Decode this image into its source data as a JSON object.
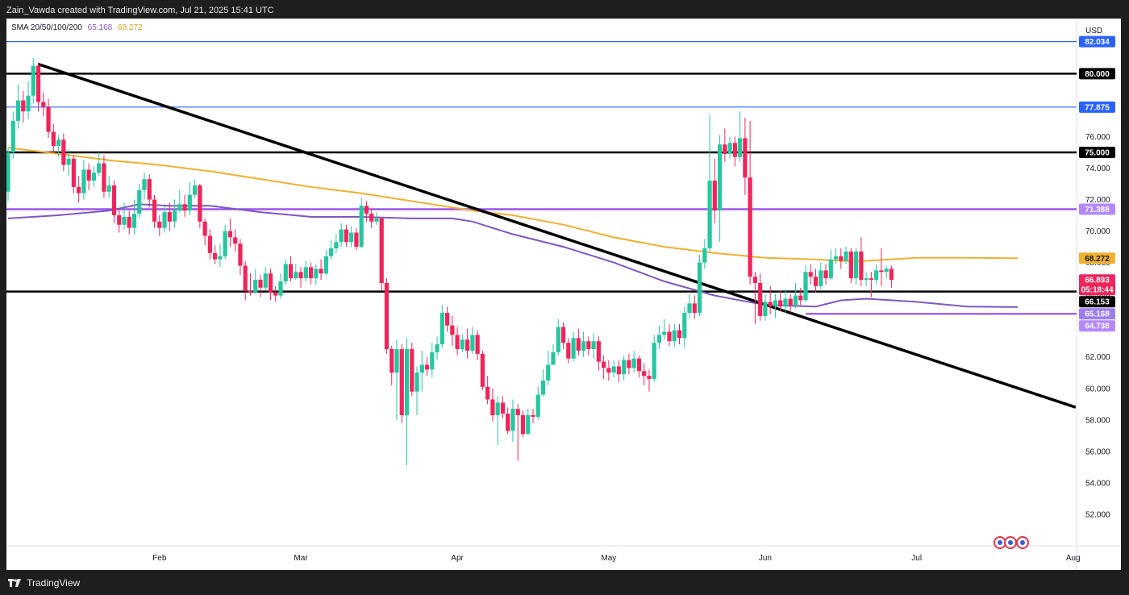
{
  "header": {
    "text": "Zain_Vawda created with TradingView.com, Jul 21, 2025 15:41 UTC"
  },
  "footer": {
    "brand": "TradingView",
    "logo_icon": "tradingview-logo-icon"
  },
  "legend": {
    "label": "SMA 20/50/100/200",
    "value_a": "65.168",
    "value_b": "68.272"
  },
  "currency": "USD",
  "colors": {
    "up": "#26c6a0",
    "down": "#f0245a",
    "sma_a": "#7e57c2",
    "sma_b": "#f0b030",
    "blue_line": "#2962ff",
    "black_line": "#000000",
    "purple_line": "#9c55e8"
  },
  "chart_data": {
    "type": "candlestick",
    "y_axis": {
      "range": [
        50.0,
        83.5
      ],
      "ticks": [
        "52.000",
        "54.000",
        "56.000",
        "58.000",
        "60.000",
        "62.000",
        "64.000",
        "66.000",
        "68.000",
        "70.000",
        "72.000",
        "74.000",
        "76.000"
      ]
    },
    "x_axis": {
      "ticks": [
        {
          "label": "Feb",
          "t": 30
        },
        {
          "label": "Mar",
          "t": 58
        },
        {
          "label": "Apr",
          "t": 89
        },
        {
          "label": "May",
          "t": 119
        },
        {
          "label": "Jun",
          "t": 150
        },
        {
          "label": "Jul",
          "t": 180
        },
        {
          "label": "Aug",
          "t": 211
        }
      ],
      "range": [
        0,
        212
      ]
    },
    "horizontal_levels": [
      {
        "value": 82.034,
        "label": "82.034",
        "style": "blue"
      },
      {
        "value": 80.0,
        "label": "80.000",
        "style": "black"
      },
      {
        "value": 77.875,
        "label": "77.875",
        "style": "blue"
      },
      {
        "value": 75.0,
        "label": "75.000",
        "style": "black"
      },
      {
        "value": 71.388,
        "label": "71.388",
        "style": "purple"
      },
      {
        "value": 66.153,
        "label": "66.153",
        "style": "black"
      },
      {
        "value": 64.738,
        "label": "64.738",
        "style": "purple-short",
        "from_t": 158
      }
    ],
    "trendline": {
      "from": {
        "t": 6,
        "y": 80.6
      },
      "to": {
        "t": 211.5,
        "y": 58.8
      }
    },
    "price_tags": [
      {
        "value": 68.272,
        "label": "68.272",
        "bg": "#f0b030",
        "fg": "#131722"
      },
      {
        "value": 66.893,
        "label": "66.893",
        "sublabel": "05:18:44",
        "bg": "#f0245a",
        "fg": "#ffffff"
      },
      {
        "value": 66.153,
        "label": "66.153",
        "bg": "#000000",
        "fg": "#ffffff"
      },
      {
        "value": 65.168,
        "label": "65.168",
        "bg": "#9c7ef0",
        "fg": "#ffffff"
      },
      {
        "value": 64.738,
        "label": "64.738",
        "bg": "#b388ff",
        "fg": "#ffffff"
      }
    ],
    "sma_a": [
      [
        0,
        70.8
      ],
      [
        10,
        71.0
      ],
      [
        20,
        71.3
      ],
      [
        26,
        71.7
      ],
      [
        32,
        71.6
      ],
      [
        40,
        71.6
      ],
      [
        50,
        71.2
      ],
      [
        60,
        70.9
      ],
      [
        70,
        70.9
      ],
      [
        80,
        70.8
      ],
      [
        88,
        70.8
      ],
      [
        92,
        70.6
      ],
      [
        100,
        69.8
      ],
      [
        110,
        69.0
      ],
      [
        120,
        68.0
      ],
      [
        130,
        66.8
      ],
      [
        140,
        65.9
      ],
      [
        150,
        65.3
      ],
      [
        160,
        65.2
      ],
      [
        165,
        65.6
      ],
      [
        170,
        65.7
      ],
      [
        180,
        65.5
      ],
      [
        190,
        65.2
      ],
      [
        200,
        65.168
      ]
    ],
    "sma_b": [
      [
        0,
        75.3
      ],
      [
        10,
        74.9
      ],
      [
        20,
        74.5
      ],
      [
        30,
        74.2
      ],
      [
        40,
        73.8
      ],
      [
        50,
        73.3
      ],
      [
        60,
        72.8
      ],
      [
        70,
        72.4
      ],
      [
        80,
        71.9
      ],
      [
        88,
        71.5
      ],
      [
        92,
        71.3
      ],
      [
        100,
        71.0
      ],
      [
        110,
        70.4
      ],
      [
        120,
        69.6
      ],
      [
        130,
        69.0
      ],
      [
        140,
        68.6
      ],
      [
        150,
        68.3
      ],
      [
        160,
        68.2
      ],
      [
        165,
        68.1
      ],
      [
        170,
        68.1
      ],
      [
        180,
        68.3
      ],
      [
        190,
        68.3
      ],
      [
        200,
        68.272
      ]
    ],
    "candles": [
      [
        0,
        72.5,
        75,
        75.3,
        71.9
      ],
      [
        1,
        75.0,
        77.0,
        77.6,
        74.6
      ],
      [
        2,
        77.0,
        78.3,
        79.3,
        76.5
      ],
      [
        3,
        78.3,
        77.6,
        78.9,
        76.9
      ],
      [
        4,
        77.6,
        78.6,
        79.5,
        77.1
      ],
      [
        5,
        78.6,
        80.5,
        81.0,
        78.1
      ],
      [
        6,
        80.5,
        78.2,
        80.7,
        77.6
      ],
      [
        7,
        78.2,
        77.9,
        78.8,
        77.3
      ],
      [
        8,
        77.9,
        76.3,
        78.4,
        75.9
      ],
      [
        9,
        76.3,
        75.4,
        76.8,
        75.0
      ],
      [
        10,
        75.4,
        75.8,
        76.1,
        74.7
      ],
      [
        11,
        75.8,
        74.2,
        76.2,
        73.8
      ],
      [
        12,
        74.2,
        74.6,
        75.2,
        73.5
      ],
      [
        13,
        74.6,
        72.8,
        74.8,
        72.4
      ],
      [
        14,
        72.8,
        72.4,
        73.5,
        71.8
      ],
      [
        15,
        72.4,
        73.9,
        74.5,
        72.0
      ],
      [
        16,
        73.9,
        73.2,
        74.3,
        72.6
      ],
      [
        17,
        73.2,
        73.7,
        74.1,
        72.8
      ],
      [
        18,
        73.7,
        74.3,
        75.0,
        73.5
      ],
      [
        19,
        74.3,
        72.5,
        74.8,
        72.1
      ],
      [
        20,
        72.5,
        72.9,
        73.5,
        72.1
      ],
      [
        21,
        72.9,
        71.0,
        73.2,
        70.5
      ],
      [
        22,
        71.0,
        70.4,
        71.4,
        69.9
      ],
      [
        23,
        70.4,
        70.9,
        71.8,
        70.1
      ],
      [
        24,
        70.9,
        70.2,
        71.3,
        69.8
      ],
      [
        25,
        70.2,
        71.1,
        72.0,
        69.8
      ],
      [
        26,
        71.1,
        72.6,
        73.0,
        70.8
      ],
      [
        27,
        72.6,
        73.3,
        73.7,
        72.0
      ],
      [
        28,
        73.3,
        72.0,
        73.6,
        71.5
      ],
      [
        29,
        72.0,
        70.6,
        72.3,
        70.2
      ],
      [
        30,
        70.6,
        70.2,
        71.0,
        69.7
      ],
      [
        31,
        70.2,
        71.2,
        71.6,
        69.9
      ],
      [
        32,
        71.2,
        70.6,
        71.8,
        70.0
      ],
      [
        33,
        70.6,
        71.3,
        72.0,
        70.2
      ],
      [
        34,
        71.3,
        71.7,
        72.6,
        71.2
      ],
      [
        35,
        71.7,
        71.3,
        72.3,
        70.9
      ],
      [
        36,
        71.3,
        72.3,
        73.1,
        71.0
      ],
      [
        37,
        72.3,
        72.9,
        73.3,
        72.1
      ],
      [
        38,
        72.9,
        70.6,
        73.0,
        70.2
      ],
      [
        39,
        70.6,
        69.7,
        70.8,
        69.1
      ],
      [
        40,
        69.7,
        68.6,
        70.1,
        68.2
      ],
      [
        41,
        68.6,
        68.2,
        69.1,
        67.9
      ],
      [
        42,
        68.2,
        68.4,
        69.2,
        67.7
      ],
      [
        43,
        68.4,
        70.0,
        70.4,
        68.2
      ],
      [
        44,
        70.0,
        69.6,
        70.8,
        69.0
      ],
      [
        45,
        69.6,
        69.2,
        70.1,
        68.7
      ],
      [
        46,
        69.2,
        67.8,
        69.5,
        67.2
      ],
      [
        47,
        67.8,
        66.2,
        68.1,
        65.6
      ],
      [
        48,
        66.2,
        66.1,
        67.3,
        65.9
      ],
      [
        49,
        66.1,
        66.9,
        67.6,
        66.0
      ],
      [
        50,
        66.9,
        66.4,
        67.2,
        65.8
      ],
      [
        51,
        66.4,
        67.3,
        67.7,
        66.2
      ],
      [
        52,
        67.3,
        66.1,
        67.6,
        65.6
      ],
      [
        53,
        66.1,
        65.9,
        66.5,
        65.5
      ],
      [
        54,
        65.9,
        66.8,
        67.3,
        65.7
      ],
      [
        55,
        66.8,
        67.9,
        68.2,
        66.6
      ],
      [
        56,
        67.9,
        67.0,
        68.4,
        66.8
      ],
      [
        57,
        67.0,
        67.4,
        67.9,
        66.9
      ],
      [
        58,
        67.4,
        67.0,
        67.7,
        66.4
      ],
      [
        59,
        67.0,
        67.7,
        68.1,
        66.8
      ],
      [
        60,
        67.7,
        67.0,
        68.0,
        66.6
      ],
      [
        61,
        67.0,
        67.6,
        67.9,
        66.6
      ],
      [
        62,
        67.6,
        67.3,
        68.2,
        66.9
      ],
      [
        63,
        67.3,
        68.4,
        68.8,
        67.2
      ],
      [
        64,
        68.4,
        68.9,
        69.4,
        68.2
      ],
      [
        65,
        68.9,
        69.3,
        69.8,
        68.6
      ],
      [
        66,
        69.3,
        70.1,
        70.5,
        69.0
      ],
      [
        67,
        70.1,
        69.3,
        70.4,
        69.0
      ],
      [
        68,
        69.3,
        69.9,
        70.3,
        69.0
      ],
      [
        69,
        69.9,
        69.0,
        70.2,
        68.8
      ],
      [
        70,
        69.0,
        71.6,
        72.1,
        68.9
      ],
      [
        71,
        71.6,
        71.1,
        71.9,
        70.6
      ],
      [
        72,
        71.1,
        70.6,
        71.4,
        70.2
      ],
      [
        73,
        70.6,
        70.8,
        71.2,
        70.4
      ],
      [
        74,
        70.8,
        66.7,
        70.9,
        66.2
      ],
      [
        75,
        66.7,
        62.5,
        67.0,
        62.2
      ],
      [
        76,
        62.5,
        61.0,
        62.7,
        60.2
      ],
      [
        77,
        61.0,
        62.5,
        63.1,
        58.0
      ],
      [
        78,
        62.5,
        58.3,
        62.8,
        57.8
      ],
      [
        79,
        58.3,
        62.5,
        63.2,
        55.1
      ],
      [
        80,
        62.5,
        59.8,
        62.9,
        59.5
      ],
      [
        81,
        59.8,
        61.0,
        61.4,
        58.3
      ],
      [
        82,
        61.0,
        61.5,
        62.4,
        59.8
      ],
      [
        83,
        61.5,
        61.2,
        62.0,
        60.8
      ],
      [
        84,
        61.2,
        62.3,
        62.9,
        60.7
      ],
      [
        85,
        62.3,
        62.8,
        63.3,
        61.8
      ],
      [
        86,
        62.8,
        64.8,
        65.3,
        62.6
      ],
      [
        87,
        64.8,
        64.0,
        65.2,
        63.6
      ],
      [
        88,
        64.0,
        63.4,
        64.6,
        62.7
      ],
      [
        89,
        63.4,
        62.5,
        63.9,
        62.1
      ],
      [
        90,
        62.5,
        63.1,
        63.4,
        62.3
      ],
      [
        91,
        63.1,
        62.4,
        63.8,
        61.9
      ],
      [
        92,
        62.4,
        63.4,
        63.9,
        62.2
      ],
      [
        93,
        63.4,
        62.2,
        63.7,
        61.8
      ],
      [
        94,
        62.2,
        60.1,
        62.4,
        59.9
      ],
      [
        95,
        60.1,
        59.3,
        60.8,
        59.0
      ],
      [
        96,
        59.3,
        58.3,
        60.0,
        57.9
      ],
      [
        97,
        58.3,
        59.1,
        59.5,
        56.4
      ],
      [
        98,
        59.1,
        58.4,
        59.5,
        58.1
      ],
      [
        99,
        58.4,
        57.3,
        58.8,
        57.1
      ],
      [
        100,
        57.3,
        58.7,
        59.3,
        56.6
      ],
      [
        101,
        58.7,
        58.3,
        59.0,
        55.4
      ],
      [
        102,
        58.3,
        57.1,
        58.6,
        56.9
      ],
      [
        103,
        57.1,
        58.3,
        58.7,
        57.2
      ],
      [
        104,
        58.3,
        58.2,
        58.7,
        57.8
      ],
      [
        105,
        58.2,
        59.6,
        60.1,
        58.0
      ],
      [
        106,
        59.6,
        60.5,
        61.2,
        59.5
      ],
      [
        107,
        60.5,
        61.5,
        62.4,
        60.2
      ],
      [
        108,
        61.5,
        62.3,
        62.8,
        61.5
      ],
      [
        109,
        62.3,
        63.9,
        64.4,
        62.1
      ],
      [
        110,
        63.9,
        62.9,
        64.2,
        62.5
      ],
      [
        111,
        62.9,
        61.9,
        63.2,
        61.6
      ],
      [
        112,
        61.9,
        63.2,
        63.6,
        61.7
      ],
      [
        113,
        63.2,
        62.4,
        63.8,
        62.1
      ],
      [
        114,
        62.4,
        63.0,
        63.6,
        62.0
      ],
      [
        115,
        63.0,
        62.5,
        63.3,
        62.1
      ],
      [
        116,
        62.5,
        63.0,
        63.5,
        61.9
      ],
      [
        117,
        63.0,
        61.7,
        63.3,
        61.1
      ],
      [
        118,
        61.7,
        61.3,
        62.1,
        60.6
      ],
      [
        119,
        61.3,
        61.0,
        61.8,
        60.5
      ],
      [
        120,
        61.0,
        61.4,
        61.8,
        60.7
      ],
      [
        121,
        61.4,
        60.9,
        61.8,
        60.4
      ],
      [
        122,
        60.9,
        61.8,
        62.1,
        60.5
      ],
      [
        123,
        61.8,
        61.3,
        62.2,
        60.9
      ],
      [
        124,
        61.3,
        61.9,
        62.4,
        61.0
      ],
      [
        125,
        61.9,
        61.1,
        62.1,
        60.7
      ],
      [
        126,
        61.1,
        60.8,
        61.6,
        60.2
      ],
      [
        127,
        60.8,
        60.6,
        61.2,
        59.8
      ],
      [
        128,
        60.6,
        62.9,
        63.4,
        60.4
      ],
      [
        129,
        62.9,
        63.4,
        64.0,
        62.5
      ],
      [
        130,
        63.4,
        63.6,
        64.4,
        63.1
      ],
      [
        131,
        63.6,
        63.0,
        64.1,
        62.7
      ],
      [
        132,
        63.0,
        63.7,
        64.1,
        62.6
      ],
      [
        133,
        63.7,
        63.2,
        64.1,
        62.8
      ],
      [
        134,
        63.2,
        64.8,
        65.2,
        62.6
      ],
      [
        135,
        64.8,
        65.4,
        66.0,
        64.5
      ],
      [
        136,
        65.4,
        64.8,
        65.9,
        64.4
      ],
      [
        137,
        64.8,
        68.0,
        68.5,
        64.6
      ],
      [
        138,
        68.0,
        68.9,
        69.5,
        67.6
      ],
      [
        139,
        68.9,
        73.2,
        77.4,
        68.7
      ],
      [
        140,
        73.2,
        71.3,
        74.6,
        70.5
      ],
      [
        141,
        71.3,
        75.5,
        76.1,
        69.3
      ],
      [
        142,
        75.5,
        74.9,
        76.5,
        74.4
      ],
      [
        143,
        74.9,
        75.6,
        76.0,
        74.6
      ],
      [
        144,
        75.6,
        74.7,
        76.0,
        74.1
      ],
      [
        145,
        74.7,
        75.9,
        77.6,
        74.4
      ],
      [
        146,
        75.9,
        73.4,
        77.2,
        72.3
      ],
      [
        147,
        73.4,
        67.1,
        77.0,
        66.6
      ],
      [
        148,
        67.1,
        66.7,
        67.4,
        64.1
      ],
      [
        149,
        66.7,
        64.6,
        67.3,
        64.3
      ],
      [
        150,
        64.6,
        65.5,
        66.0,
        64.3
      ],
      [
        151,
        65.5,
        65.2,
        66.5,
        64.7
      ],
      [
        152,
        65.2,
        65.6,
        66.0,
        64.5
      ],
      [
        153,
        65.6,
        65.2,
        66.2,
        64.9
      ],
      [
        154,
        65.2,
        65.7,
        66.3,
        64.8
      ],
      [
        155,
        65.7,
        65.3,
        66.0,
        64.8
      ],
      [
        156,
        65.3,
        65.9,
        66.7,
        65.1
      ],
      [
        157,
        65.9,
        65.6,
        66.4,
        65.3
      ],
      [
        158,
        65.6,
        67.4,
        67.8,
        65.5
      ],
      [
        159,
        67.4,
        67.1,
        67.9,
        66.6
      ],
      [
        160,
        67.1,
        66.5,
        67.6,
        66.1
      ],
      [
        161,
        66.5,
        67.5,
        68.0,
        66.3
      ],
      [
        162,
        67.5,
        67.0,
        67.9,
        66.6
      ],
      [
        163,
        67.0,
        68.2,
        68.8,
        66.9
      ],
      [
        164,
        68.2,
        68.4,
        68.9,
        67.9
      ],
      [
        165,
        68.4,
        68.1,
        68.9,
        67.6
      ],
      [
        166,
        68.1,
        68.7,
        69.0,
        67.9
      ],
      [
        167,
        68.7,
        67.0,
        68.9,
        66.7
      ],
      [
        168,
        67.0,
        68.7,
        68.9,
        66.6
      ],
      [
        169,
        68.7,
        66.9,
        69.6,
        66.5
      ],
      [
        170,
        66.9,
        67.0,
        67.4,
        66.5
      ],
      [
        171,
        67.0,
        66.9,
        67.4,
        65.8
      ],
      [
        172,
        66.9,
        67.5,
        67.9,
        66.6
      ],
      [
        173,
        67.5,
        67.4,
        68.9,
        66.5
      ],
      [
        174,
        67.4,
        67.6,
        67.8,
        67.0
      ],
      [
        175,
        67.6,
        66.893,
        67.8,
        66.4
      ]
    ]
  }
}
